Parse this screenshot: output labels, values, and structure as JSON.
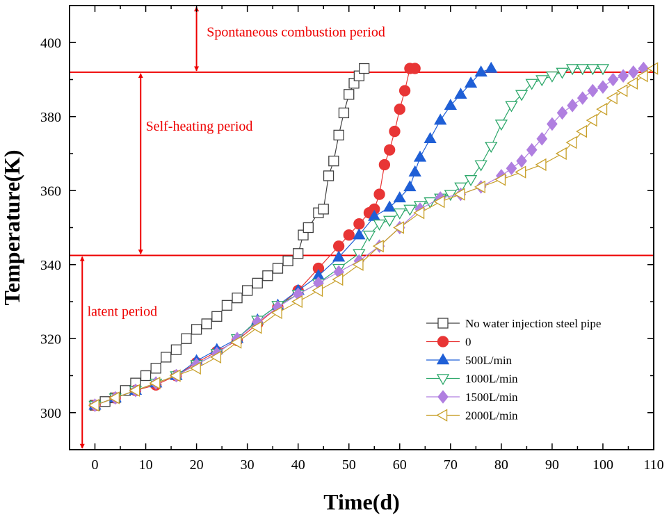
{
  "chart_data": {
    "type": "line",
    "xlabel": "Time(d)",
    "ylabel": "Temperature(K)",
    "xlim": [
      -5,
      110
    ],
    "ylim": [
      290,
      410
    ],
    "xticks": [
      0,
      10,
      20,
      30,
      40,
      50,
      60,
      70,
      80,
      90,
      100,
      110
    ],
    "yticks": [
      300,
      320,
      340,
      360,
      380,
      400
    ],
    "legend_position": "bottom-right",
    "thresholds": [
      {
        "name": "latent-threshold",
        "value": 342.5,
        "color": "#ee0000"
      },
      {
        "name": "combustion-threshold",
        "value": 392,
        "color": "#ee0000"
      }
    ],
    "annotations": [
      {
        "name": "spontaneous-combustion",
        "text": "Spontaneous combustion period",
        "x": 20,
        "y_range": [
          392,
          410
        ],
        "label_x": 22,
        "label_y": 403
      },
      {
        "name": "self-heating",
        "text": "Self-heating period",
        "x": 9,
        "y_range": [
          342.5,
          392
        ],
        "label_x": 10,
        "label_y": 377.5
      },
      {
        "name": "latent",
        "text": "latent period",
        "x": -2.5,
        "y_range": [
          290,
          342.5
        ],
        "label_x": -1.5,
        "label_y": 327.5
      }
    ],
    "series": [
      {
        "name": "No water injection steel pipe",
        "color": "#404040",
        "marker": "square",
        "filled": false,
        "x": [
          0,
          2,
          4,
          6,
          8,
          10,
          12,
          14,
          16,
          18,
          20,
          22,
          24,
          26,
          28,
          30,
          32,
          34,
          36,
          38,
          40,
          41,
          42,
          44,
          45,
          46,
          47,
          48,
          49,
          50,
          51,
          52,
          53
        ],
        "y": [
          302,
          303,
          304,
          306,
          308,
          310,
          312,
          315,
          317,
          320,
          322.5,
          324,
          326,
          329,
          331,
          333,
          335,
          337,
          339,
          341,
          343,
          348,
          350,
          354,
          355,
          364,
          368,
          375,
          381,
          386,
          389,
          391,
          393
        ]
      },
      {
        "name": "0",
        "color": "#e83535",
        "marker": "circle",
        "filled": true,
        "x": [
          0,
          4,
          8,
          12,
          16,
          20,
          24,
          28,
          32,
          36,
          40,
          44,
          48,
          50,
          52,
          54,
          55,
          56,
          57,
          58,
          59,
          60,
          61,
          62,
          63
        ],
        "y": [
          302,
          304,
          306,
          307.5,
          310,
          313.5,
          316.5,
          319.5,
          324,
          328.5,
          333,
          339,
          345,
          348,
          351,
          354,
          355,
          359,
          367,
          371,
          376,
          382,
          387,
          393,
          393
        ]
      },
      {
        "name": "500L/min",
        "color": "#1f5fd6",
        "marker": "triangle-up",
        "filled": true,
        "x": [
          0,
          4,
          8,
          12,
          16,
          20,
          24,
          28,
          32,
          36,
          40,
          44,
          48,
          52,
          55,
          58,
          60,
          62,
          63,
          64,
          66,
          68,
          70,
          72,
          74,
          76,
          78
        ],
        "y": [
          302,
          304,
          306,
          308,
          310,
          314,
          317,
          320,
          325,
          329,
          333,
          337,
          342,
          348,
          353,
          355.5,
          358,
          361,
          365,
          369,
          374,
          379,
          383,
          386,
          389,
          392,
          393
        ]
      },
      {
        "name": "1000L/min",
        "color": "#2ea86b",
        "marker": "triangle-down",
        "filled": false,
        "x": [
          0,
          4,
          8,
          12,
          16,
          20,
          24,
          28,
          32,
          36,
          40,
          44,
          48,
          52,
          54,
          56,
          58,
          60,
          62,
          64,
          66,
          68,
          70,
          72,
          74,
          76,
          78,
          80,
          82,
          84,
          86,
          88,
          90,
          92,
          94,
          96,
          98,
          100
        ],
        "y": [
          302,
          304,
          306,
          308,
          310,
          313,
          316,
          320,
          325,
          329,
          332,
          335,
          339,
          343,
          348,
          351,
          352,
          354,
          355,
          356,
          357,
          358,
          359,
          361,
          363,
          367,
          372,
          378,
          383,
          386,
          389,
          390,
          391,
          392,
          393,
          393,
          393,
          393
        ]
      },
      {
        "name": "1500L/min",
        "color": "#b07fe0",
        "marker": "diamond",
        "filled": true,
        "x": [
          0,
          4,
          8,
          12,
          16,
          20,
          24,
          28,
          32,
          36,
          40,
          44,
          48,
          52,
          56,
          60,
          64,
          68,
          72,
          76,
          80,
          82,
          84,
          86,
          88,
          90,
          92,
          94,
          96,
          98,
          100,
          102,
          104,
          106,
          108
        ],
        "y": [
          302,
          304,
          306,
          308,
          310,
          313,
          316,
          320,
          324.5,
          328.5,
          332,
          335,
          338,
          341,
          345,
          350,
          355,
          358,
          359,
          361,
          364,
          366,
          368,
          371,
          374,
          378,
          381,
          383,
          385,
          387,
          388,
          390,
          391,
          392,
          393
        ]
      },
      {
        "name": "2000L/min",
        "color": "#c8a02a",
        "marker": "triangle-left",
        "filled": false,
        "x": [
          0,
          4,
          8,
          12,
          16,
          20,
          24,
          28,
          32,
          36,
          40,
          44,
          48,
          52,
          56,
          60,
          64,
          68,
          72,
          76,
          80,
          84,
          88,
          92,
          94,
          96,
          98,
          100,
          102,
          104,
          106,
          108,
          110
        ],
        "y": [
          302,
          304,
          306,
          308,
          310,
          312,
          315,
          319,
          323,
          327,
          330,
          333,
          336,
          340,
          345,
          350,
          354,
          357,
          359,
          361,
          363,
          365,
          367,
          370,
          373,
          376,
          379,
          382,
          385,
          387,
          389,
          391,
          393
        ]
      }
    ]
  }
}
